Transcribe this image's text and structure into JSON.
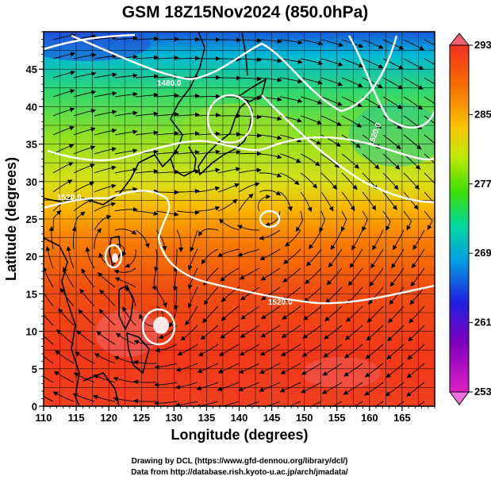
{
  "title": "GSM 18Z15Nov2024 (850.0hPa)",
  "xlabel": "Longitude (degrees)",
  "ylabel": "Latitude  (degrees)",
  "credit_line1": "Drawing by DCL (https://www.gfd-dennou.org/library/dcl/)",
  "credit_line2": "Data from http://database.rish.kyoto-u.ac.jp/arch/jmadata/",
  "x_ticks": [
    "110",
    "115",
    "120",
    "125",
    "130",
    "135",
    "140",
    "145",
    "150",
    "155",
    "160",
    "165"
  ],
  "y_ticks": [
    "0",
    "5",
    "10",
    "15",
    "20",
    "25",
    "30",
    "35",
    "40",
    "45"
  ],
  "colorbar_ticks": [
    "293",
    "285",
    "277",
    "269",
    "261",
    "253"
  ],
  "contour_labels": [
    "1480.0",
    "1520.0",
    "1520.0",
    "1520.0"
  ],
  "map_data": {
    "type": "temperature field with streamlines and geopotential height contours",
    "level": "850.0hPa",
    "lon_range": [
      110,
      170
    ],
    "lat_range": [
      0,
      50
    ],
    "colorbar_range": [
      253,
      293
    ],
    "colorbar_colors": [
      "#e020c0",
      "#8000c0",
      "#2020e0",
      "#00a0e0",
      "#00d8a0",
      "#40e000",
      "#c0e800",
      "#f8c800",
      "#f87000",
      "#f02000"
    ],
    "features": {
      "vortices": [
        {
          "lon": 121,
          "lat": 21
        },
        {
          "lon": 127,
          "lat": 11.5
        },
        {
          "lon": 144.5,
          "lat": 27
        }
      ]
    }
  }
}
